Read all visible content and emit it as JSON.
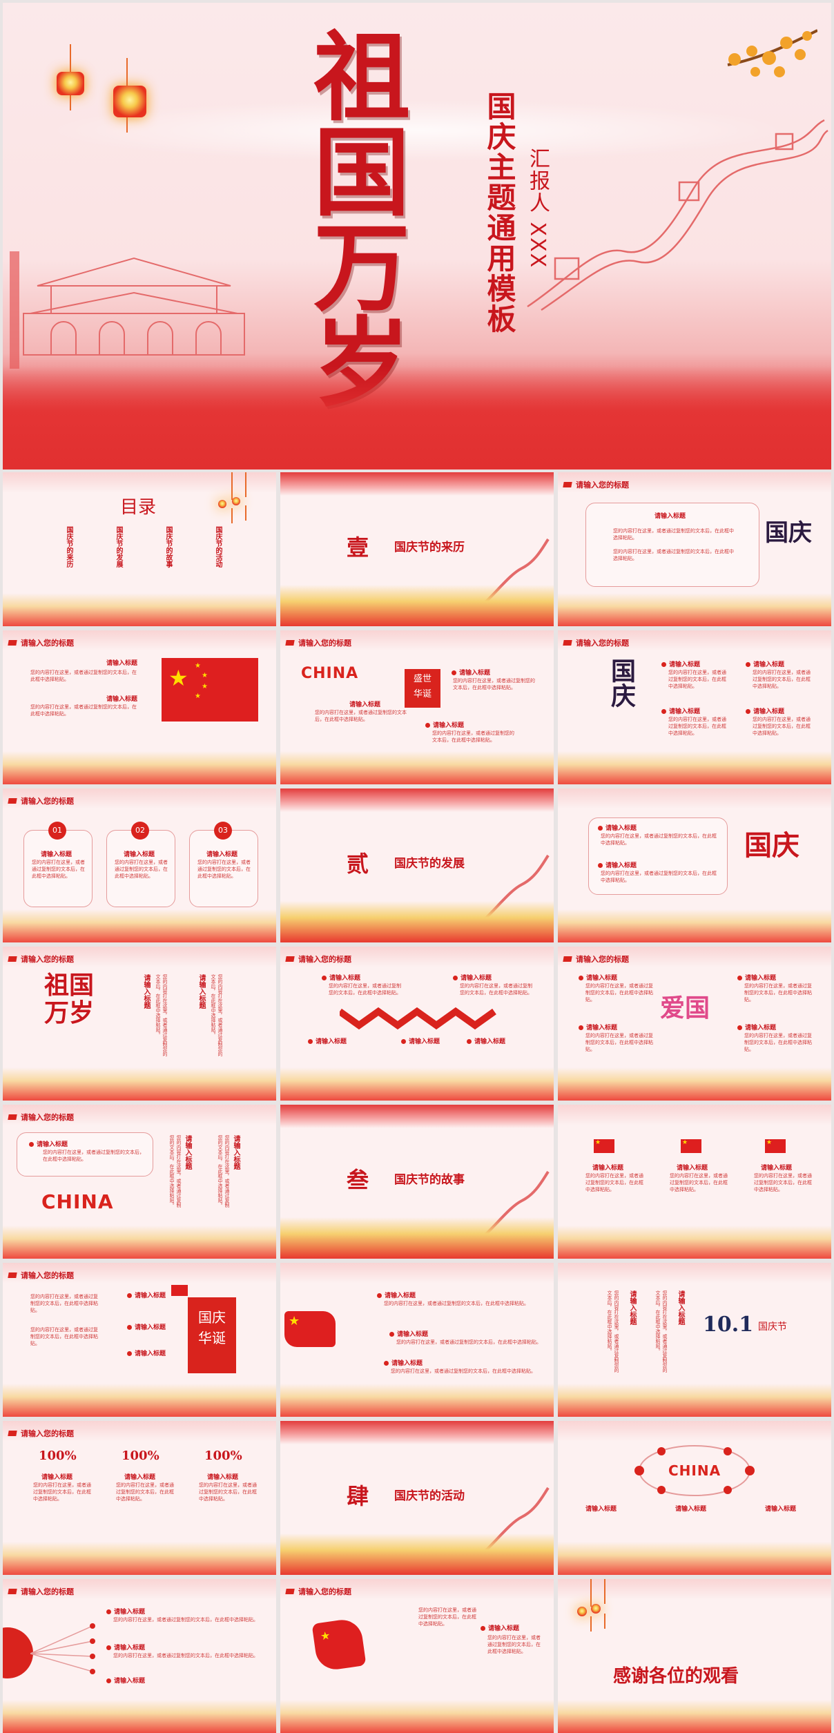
{
  "hero": {
    "title_chars": [
      "祖",
      "国",
      "万",
      "岁"
    ],
    "subtitle": "国庆主题通用模板",
    "reporter": "汇报人 XXX"
  },
  "common": {
    "slide_header": "请输入您的标题",
    "sub_label": "请输入标题",
    "body_text": "您的内容打在这里，或者通过复制您的文本后，在此框中选择粘贴。"
  },
  "toc": {
    "title": "目录",
    "items": [
      "国庆节的来历",
      "国庆节的发展",
      "国庆节的故事",
      "国庆节的活动"
    ]
  },
  "sections": [
    {
      "num": "壹",
      "title": "国庆节的来历"
    },
    {
      "num": "贰",
      "title": "国庆节的发展"
    },
    {
      "num": "叁",
      "title": "国庆节的故事"
    },
    {
      "num": "肆",
      "title": "国庆节的活动"
    }
  ],
  "decor": {
    "guoqing": "国庆",
    "jie": "节",
    "china": "CHINA",
    "shengshi": "盛世",
    "huadan": "华诞",
    "num1": "01",
    "num2": "02",
    "num3": "03",
    "zuguo": "祖国",
    "wansui": "万岁",
    "aiguo": "爱国",
    "pct": "100%",
    "shiyi": "10.1",
    "guoqingjie": "国庆节",
    "guoqing_huadan_top": "国庆",
    "guoqing_huadan_bottom": "华诞"
  },
  "thanks": "感谢各位的观看",
  "colors": {
    "accent": "#c8161d",
    "flag_red": "#de1f1f",
    "star": "#ffde00"
  }
}
